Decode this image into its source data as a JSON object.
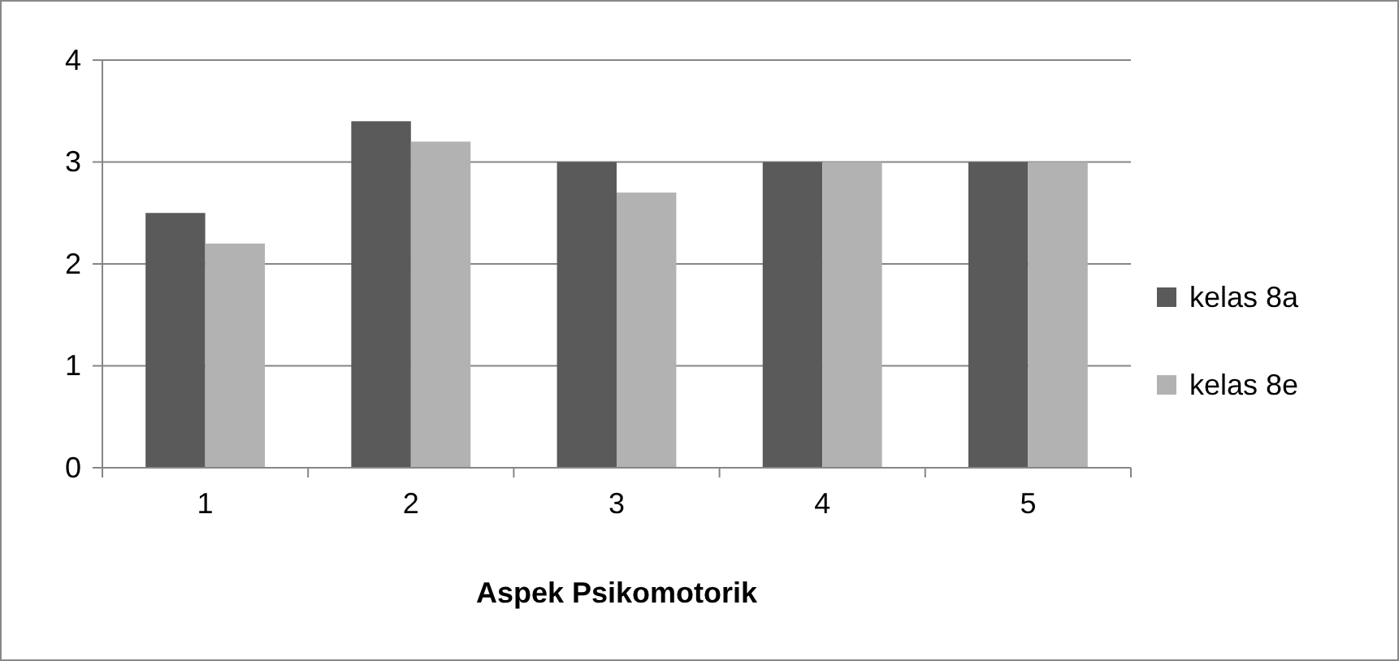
{
  "chart_data": {
    "type": "bar",
    "xlabel": "Aspek Psikomotorik",
    "categories": [
      "1",
      "2",
      "3",
      "4",
      "5"
    ],
    "series": [
      {
        "name": "kelas 8a",
        "color": "#5a5a5a",
        "values": [
          2.5,
          3.4,
          3.0,
          3.0,
          3.0
        ]
      },
      {
        "name": "kelas 8e",
        "color": "#b2b2b2",
        "values": [
          2.2,
          3.2,
          2.7,
          3.0,
          3.0
        ]
      }
    ],
    "ylim": [
      0,
      4
    ],
    "yticks": [
      0,
      1,
      2,
      3,
      4
    ],
    "grid": "y",
    "legend": "right"
  }
}
